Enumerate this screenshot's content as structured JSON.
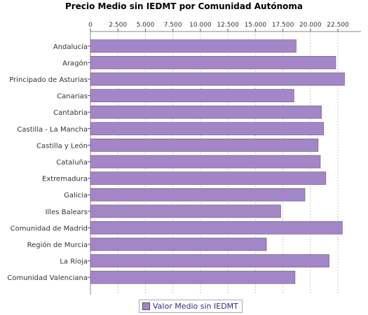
{
  "chart_data": {
    "type": "bar",
    "orientation": "horizontal",
    "title": "Precio Medio sin IEDMT por Comunidad Autónoma",
    "xlabel": "",
    "ylabel": "",
    "xlim": [
      0,
      24600
    ],
    "x_ticks": [
      0,
      2500,
      5000,
      7500,
      10000,
      12500,
      15000,
      17500,
      20000,
      22500
    ],
    "x_tick_labels": [
      "0",
      "2.500",
      "5.000",
      "7.500",
      "10.000",
      "12.500",
      "15.000",
      "17.500",
      "20.000",
      "22.500"
    ],
    "axis_position": "top",
    "grid": "vertical dashed",
    "legend_position": "bottom",
    "categories": [
      "Andalucía",
      "Aragón",
      "Principado de Asturias",
      "Canarias",
      "Cantabria",
      "Castilla - La Mancha",
      "Castilla y León",
      "Cataluña",
      "Extremadura",
      "Galicia",
      "Illes Balears",
      "Comunidad de Madrid",
      "Región de Murcia",
      "La Rioja",
      "Comunidad Valenciana"
    ],
    "series": [
      {
        "name": "Valor Medio sin IEDMT",
        "color": "#a386c8",
        "values": [
          18700,
          22300,
          23100,
          18500,
          21000,
          21200,
          20700,
          20900,
          21400,
          19500,
          17300,
          22900,
          16000,
          21700,
          18600
        ]
      }
    ]
  }
}
